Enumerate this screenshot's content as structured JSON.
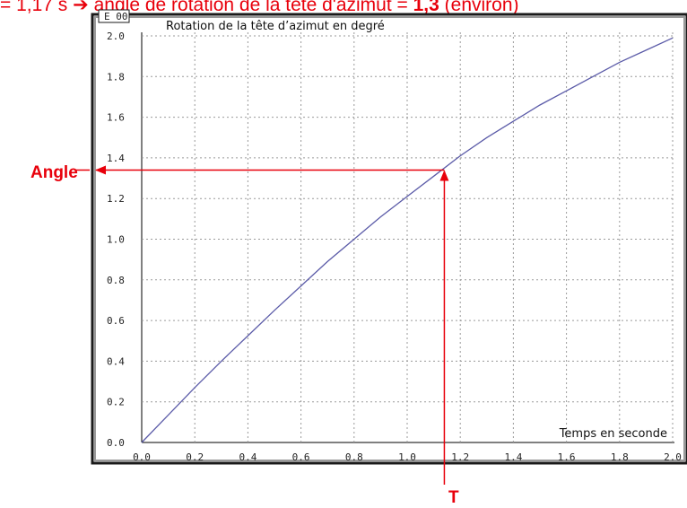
{
  "caption": {
    "prefix": "= 1,17 s",
    "arrow": "➔",
    "middle": " angle de rotation de la tête d'azimut = ",
    "value": "1,3",
    "suffix": " (environ)"
  },
  "annotations": {
    "angle_label": "Angle",
    "time_label": "T"
  },
  "colors": {
    "annotation": "#e8000b",
    "curve": "#5b5ba8",
    "grid": "#9a9a9a",
    "frame": "#1a1a1a",
    "bevel": "#9a9a9a"
  },
  "chart_data": {
    "type": "line",
    "title": "Rotation de la tête d’azimut en degré",
    "exponent_label": "E 00",
    "xlabel": "Temps en seconde",
    "ylabel": "",
    "xlim": [
      0,
      2
    ],
    "ylim": [
      0,
      2
    ],
    "xticks": [
      "0.0",
      "0.2",
      "0.4",
      "0.6",
      "0.8",
      "1.0",
      "1.2",
      "1.4",
      "1.6",
      "1.8",
      "2.0"
    ],
    "yticks": [
      "0.0",
      "0.2",
      "0.4",
      "0.6",
      "0.8",
      "1.0",
      "1.2",
      "1.4",
      "1.6",
      "1.8",
      "2.0"
    ],
    "grid": true,
    "series": [
      {
        "x": [
          0.0,
          0.1,
          0.2,
          0.3,
          0.4,
          0.5,
          0.6,
          0.7,
          0.8,
          0.9,
          1.0,
          1.1,
          1.2,
          1.3,
          1.4,
          1.5,
          1.6,
          1.7,
          1.8,
          1.9,
          2.0
        ],
        "values": [
          0.0,
          0.135,
          0.27,
          0.4,
          0.525,
          0.65,
          0.77,
          0.89,
          1.0,
          1.11,
          1.21,
          1.31,
          1.41,
          1.5,
          1.58,
          1.66,
          1.73,
          1.8,
          1.87,
          1.93,
          1.99
        ]
      }
    ],
    "marker": {
      "x": 1.14,
      "y": 1.34
    }
  }
}
